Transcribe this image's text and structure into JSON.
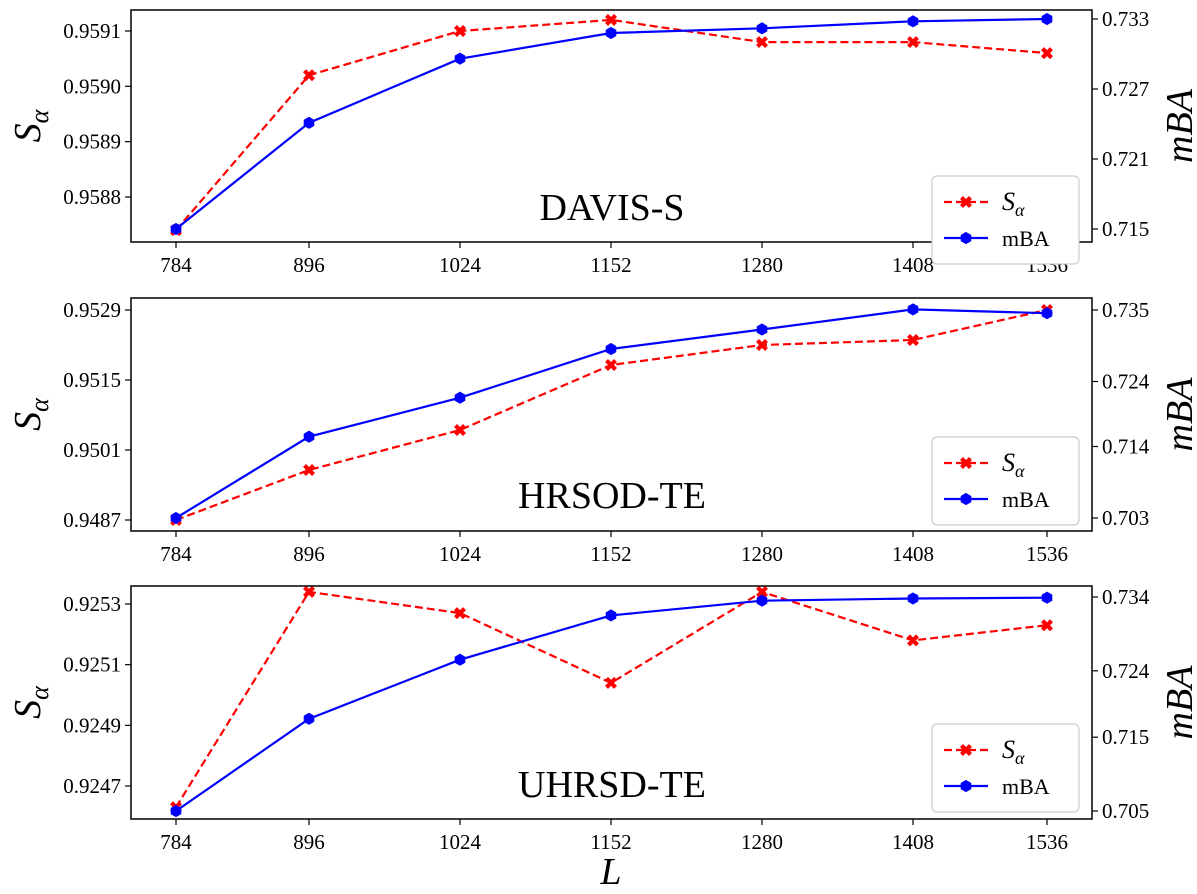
{
  "chart_data": [
    {
      "type": "line",
      "panel_label": "DAVIS-S",
      "ylabel_left": "S",
      "ylabel_left_sub": "α",
      "ylabel_right": "mBA",
      "x": [
        "784",
        "896",
        "1024",
        "1152",
        "1280",
        "1408",
        "1536"
      ],
      "xlabel": "",
      "yticks_left": [
        "0.9588",
        "0.9589",
        "0.9590",
        "0.9591"
      ],
      "yticks_right": [
        "0.715",
        "0.721",
        "0.727",
        "0.733"
      ],
      "series": [
        {
          "name": "S",
          "name_sub": "α",
          "axis": "left",
          "color": "#ff0000",
          "style": "dashed",
          "marker": "X",
          "values": [
            0.95874,
            0.95902,
            0.9591,
            0.95912,
            0.95908,
            0.95908,
            0.95906
          ]
        },
        {
          "name": "mBA",
          "axis": "right",
          "color": "#0000ff",
          "style": "solid",
          "marker": "hexagon",
          "values": [
            0.715,
            0.7241,
            0.7296,
            0.7318,
            0.7322,
            0.7328,
            0.733
          ]
        }
      ],
      "legend": "lower-right"
    },
    {
      "type": "line",
      "panel_label": "HRSOD-TE",
      "ylabel_left": "S",
      "ylabel_left_sub": "α",
      "ylabel_right": "mBA",
      "x": [
        "784",
        "896",
        "1024",
        "1152",
        "1280",
        "1408",
        "1536"
      ],
      "xlabel": "",
      "yticks_left": [
        "0.9487",
        "0.9501",
        "0.9515",
        "0.9529"
      ],
      "yticks_right": [
        "0.703",
        "0.714",
        "0.724",
        "0.735"
      ],
      "series": [
        {
          "name": "S",
          "name_sub": "α",
          "axis": "left",
          "color": "#ff0000",
          "style": "dashed",
          "marker": "X",
          "values": [
            0.9487,
            0.9497,
            0.9505,
            0.9518,
            0.9522,
            0.9523,
            0.9529
          ]
        },
        {
          "name": "mBA",
          "axis": "right",
          "color": "#0000ff",
          "style": "solid",
          "marker": "hexagon",
          "values": [
            0.703,
            0.7155,
            0.7215,
            0.729,
            0.732,
            0.7351,
            0.7345
          ]
        }
      ],
      "legend": "lower-right"
    },
    {
      "type": "line",
      "panel_label": "UHRSD-TE",
      "ylabel_left": "S",
      "ylabel_left_sub": "α",
      "ylabel_right": "mBA",
      "x": [
        "784",
        "896",
        "1024",
        "1152",
        "1280",
        "1408",
        "1536"
      ],
      "xlabel": "L",
      "yticks_left": [
        "0.9247",
        "0.9249",
        "0.9251",
        "0.9253"
      ],
      "yticks_right": [
        "0.705",
        "0.715",
        "0.724",
        "0.734"
      ],
      "series": [
        {
          "name": "S",
          "name_sub": "α",
          "axis": "left",
          "color": "#ff0000",
          "style": "dashed",
          "marker": "X",
          "values": [
            0.92463,
            0.92534,
            0.92527,
            0.92504,
            0.92534,
            0.92518,
            0.92523
          ]
        },
        {
          "name": "mBA",
          "axis": "right",
          "color": "#0000ff",
          "style": "solid",
          "marker": "hexagon",
          "values": [
            0.705,
            0.7175,
            0.7255,
            0.7315,
            0.7335,
            0.7338,
            0.7339
          ]
        }
      ],
      "legend": "lower-right"
    }
  ]
}
